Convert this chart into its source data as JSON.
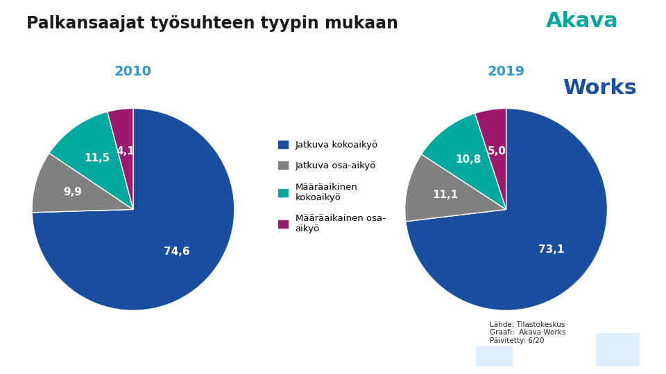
{
  "title": "Palkansaajat työsuhteen tyypin mukaan",
  "year_2010": "2010",
  "year_2019": "2019",
  "values_2010": [
    74.6,
    9.9,
    11.5,
    4.1
  ],
  "values_2019": [
    73.1,
    11.1,
    10.8,
    5.0
  ],
  "labels_2010": [
    "74,6",
    "9,9",
    "11,5",
    "4,1"
  ],
  "labels_2019": [
    "73,1",
    "11,1",
    "10,8",
    "5,0"
  ],
  "colors": [
    "#1a4f9f",
    "#808080",
    "#00a99d",
    "#9b1a6d"
  ],
  "legend_labels": [
    "Jatkuva kokoaikyö",
    "Jatkuva osa-aikyö",
    "Määräaikinen\nkokoaikyö",
    "Määräaikainen osa-\naikyö"
  ],
  "akava_teal": "#00a99d",
  "akava_blue": "#1a4f9f",
  "title_color": "#1a1a1a",
  "year_color": "#3399cc",
  "footnote": "Lähde: Tilastokeskus\nGraafi:  Akava Works\nPäivitetty: 6/20",
  "bg_color": "#ffffff"
}
